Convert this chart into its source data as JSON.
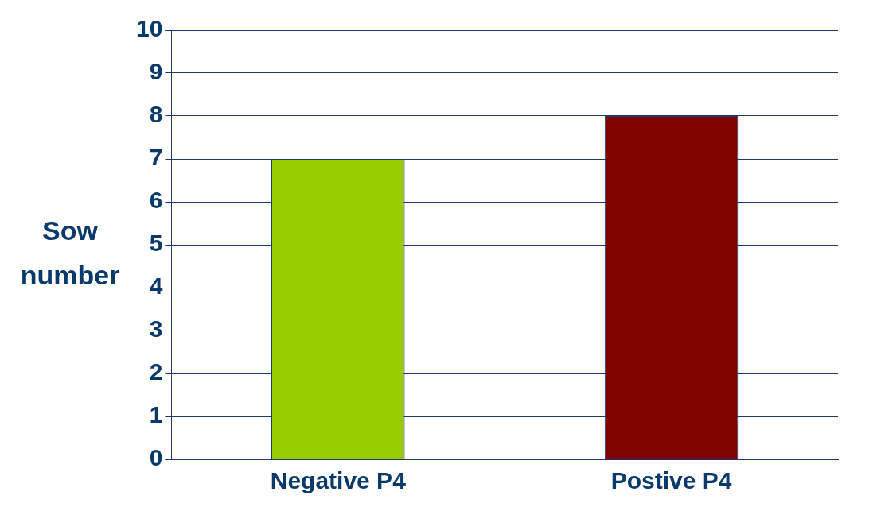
{
  "chart_data": {
    "type": "bar",
    "ylabel": "Sow number",
    "categories": [
      "Negative P4",
      "Postive P4"
    ],
    "values": [
      7,
      8
    ],
    "colors": [
      "#99cc00",
      "#800000"
    ],
    "ylim": [
      0,
      10
    ],
    "yticks": [
      0,
      1,
      2,
      3,
      4,
      5,
      6,
      7,
      8,
      9,
      10
    ],
    "grid": "y",
    "legend": false
  }
}
